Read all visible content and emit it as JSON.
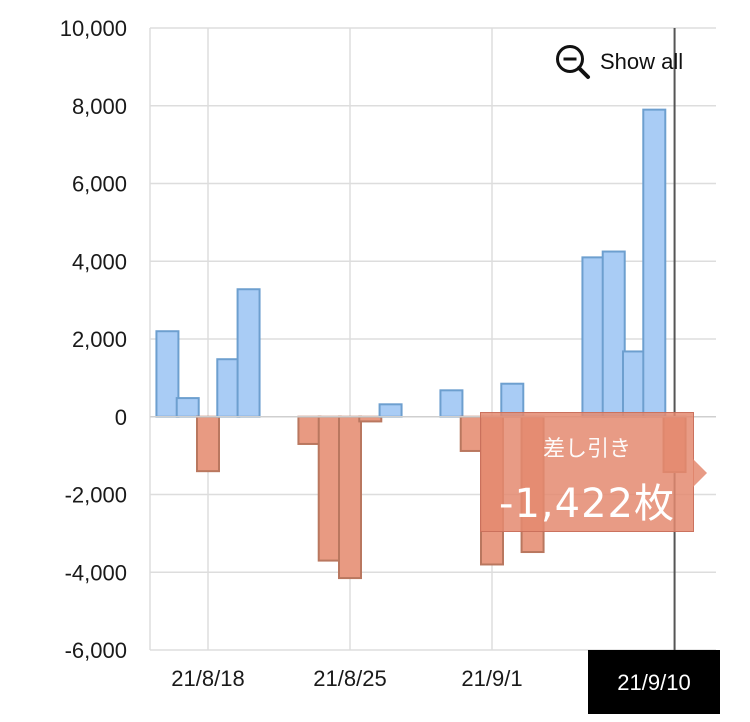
{
  "controls": {
    "show_all_label": "Show all",
    "show_all_icon": "zoom-out-icon"
  },
  "tooltip": {
    "label": "差し引き",
    "value": "-1,422枚"
  },
  "colors": {
    "positive_fill": "#a9ccf5",
    "positive_stroke": "#6d9fcf",
    "negative_fill": "#e89a82",
    "negative_stroke": "#b9775f",
    "selected_tick_bg": "#000000",
    "tooltip_bg": "#e48a70"
  },
  "chart_data": {
    "type": "bar",
    "title": "",
    "xlabel": "",
    "ylabel": "",
    "ylim": [
      -6000,
      10000
    ],
    "yticks": [
      10000,
      8000,
      6000,
      4000,
      2000,
      0,
      -2000,
      -4000,
      -6000
    ],
    "ytick_labels": [
      "10,000",
      "8,000",
      "6,000",
      "4,000",
      "2,000",
      "0",
      "-2,000",
      "-4,000",
      "-6,000"
    ],
    "x_ticks": [
      {
        "date": "2021-08-18",
        "label": "21/8/18"
      },
      {
        "date": "2021-08-25",
        "label": "21/8/25"
      },
      {
        "date": "2021-09-01",
        "label": "21/9/1"
      },
      {
        "date": "2021-09-10",
        "label": "21/9/10",
        "selected": true
      }
    ],
    "grid": true,
    "legend": "none",
    "bars": [
      {
        "date": "2021-08-16",
        "value": 2200
      },
      {
        "date": "2021-08-17",
        "value": 480
      },
      {
        "date": "2021-08-18",
        "value": -1400
      },
      {
        "date": "2021-08-19",
        "value": 1480
      },
      {
        "date": "2021-08-20",
        "value": 3280
      },
      {
        "date": "2021-08-23",
        "value": -700
      },
      {
        "date": "2021-08-24",
        "value": -3700
      },
      {
        "date": "2021-08-25",
        "value": -4150
      },
      {
        "date": "2021-08-26",
        "value": -120
      },
      {
        "date": "2021-08-27",
        "value": 320
      },
      {
        "date": "2021-08-30",
        "value": 680
      },
      {
        "date": "2021-08-31",
        "value": -880
      },
      {
        "date": "2021-09-01",
        "value": -3800
      },
      {
        "date": "2021-09-02",
        "value": 850
      },
      {
        "date": "2021-09-03",
        "value": -3480
      },
      {
        "date": "2021-09-06",
        "value": 4100
      },
      {
        "date": "2021-09-07",
        "value": 4250
      },
      {
        "date": "2021-09-08",
        "value": 1680
      },
      {
        "date": "2021-09-09",
        "value": 7900
      },
      {
        "date": "2021-09-10",
        "value": -1422,
        "selected": true
      }
    ]
  }
}
